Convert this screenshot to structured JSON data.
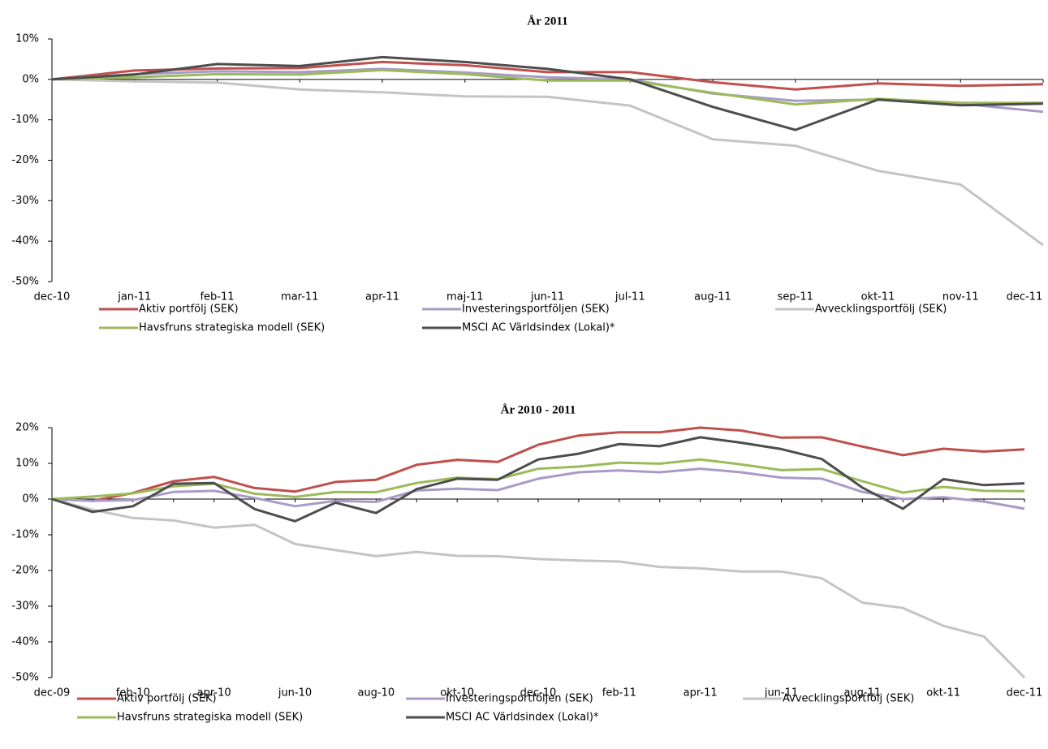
{
  "chart_data": [
    {
      "type": "line",
      "title": "År 2011",
      "categories": [
        "dec-10",
        "jan-11",
        "feb-11",
        "mar-11",
        "apr-11",
        "maj-11",
        "jun-11",
        "jul-11",
        "aug-11",
        "sep-11",
        "okt-11",
        "nov-11",
        "dec-11"
      ],
      "ylim": [
        -50,
        10
      ],
      "yticks": [
        {
          "value": -50,
          "label": "-50%"
        },
        {
          "value": -40,
          "label": "-40%"
        },
        {
          "value": -30,
          "label": "-30%"
        },
        {
          "value": -20,
          "label": "-20%"
        },
        {
          "value": -10,
          "label": "-10%"
        },
        {
          "value": 0,
          "label": "0%"
        },
        {
          "value": 10,
          "label": "10%"
        }
      ],
      "series": [
        {
          "name": "Aktiv portfölj (SEK)",
          "color": "#c0504d",
          "values": [
            0,
            2.2,
            2.7,
            2.8,
            4.3,
            3.5,
            1.8,
            1.8,
            -0.7,
            -2.5,
            -1,
            -1.6,
            -1.2
          ]
        },
        {
          "name": "Investeringsportföljen (SEK)",
          "color": "#a99bc7",
          "values": [
            0,
            1.3,
            2,
            1.8,
            2.6,
            1.7,
            0.5,
            0,
            -3.5,
            -5.3,
            -5,
            -6,
            -8
          ]
        },
        {
          "name": "Avvecklingsportfölj (SEK)",
          "color": "#c4c4c4",
          "values": [
            0,
            -0.5,
            -0.8,
            -2.5,
            -3.2,
            -4.2,
            -4.3,
            -6.5,
            -14.8,
            -16.4,
            -22.6,
            -26,
            -41
          ]
        },
        {
          "name": "Havsfruns strategiska modell (SEK)",
          "color": "#9bbb59",
          "values": [
            0,
            0.5,
            1.3,
            1.2,
            2.3,
            1.3,
            -0.3,
            -0.3,
            -3.3,
            -6.2,
            -4.8,
            -5.8,
            -5.8
          ]
        },
        {
          "name": "MSCI AC Världsindex (Lokal)*",
          "color": "#4d4d4d",
          "values": [
            0,
            1.2,
            3.8,
            3.3,
            5.5,
            4.3,
            2.6,
            0,
            -6.8,
            -12.5,
            -5,
            -6.4,
            -6
          ]
        }
      ]
    },
    {
      "type": "line",
      "title": "År 2010 - 2011",
      "categories": [
        "dec-09",
        null,
        "feb-10",
        null,
        "apr-10",
        null,
        "jun-10",
        null,
        "aug-10",
        null,
        "okt-10",
        null,
        "dec-10",
        null,
        "feb-11",
        null,
        "apr-11",
        null,
        "jun-11",
        null,
        "aug-11",
        null,
        "okt-11",
        null,
        "dec-11"
      ],
      "ylim": [
        -50,
        20
      ],
      "yticks": [
        {
          "value": -50,
          "label": "-50%"
        },
        {
          "value": -40,
          "label": "-40%"
        },
        {
          "value": -30,
          "label": "-30%"
        },
        {
          "value": -20,
          "label": "-20%"
        },
        {
          "value": -10,
          "label": "-10%"
        },
        {
          "value": 0,
          "label": "0%"
        },
        {
          "value": 10,
          "label": "10%"
        },
        {
          "value": 20,
          "label": "20%"
        }
      ],
      "series": [
        {
          "name": "Aktiv portfölj (SEK)",
          "color": "#c0504d",
          "values": [
            0,
            -0.5,
            1.7,
            5,
            6.2,
            3.1,
            2.1,
            4.8,
            5.4,
            9.6,
            11,
            10.4,
            15.2,
            17.8,
            18.7,
            18.7,
            20,
            19.2,
            17.2,
            17.3,
            14.7,
            12.3,
            14.1,
            13.3,
            13.9
          ]
        },
        {
          "name": "Investeringsportföljen (SEK)",
          "color": "#a99bc7",
          "values": [
            0,
            -0.5,
            -0.3,
            2,
            2.3,
            0.3,
            -2,
            -0.5,
            -0.8,
            2.4,
            2.9,
            2.5,
            5.7,
            7.5,
            8,
            7.5,
            8.5,
            7.5,
            6,
            5.7,
            2,
            0,
            0.5,
            -0.7,
            -2.7
          ]
        },
        {
          "name": "Avvecklingsportfölj (SEK)",
          "color": "#c4c4c4",
          "values": [
            0,
            -3,
            -5.3,
            -6,
            -8,
            -7.2,
            -12.6,
            -14.3,
            -16,
            -14.8,
            -15.9,
            -16,
            -16.8,
            -17.2,
            -17.5,
            -19,
            -19.4,
            -20.3,
            -20.3,
            -22.2,
            -29,
            -30.5,
            -35.5,
            -38.5,
            -50
          ]
        },
        {
          "name": "Havsfruns strategiska modell (SEK)",
          "color": "#9bbb59",
          "values": [
            0,
            0.7,
            1.6,
            3.6,
            4.3,
            1.5,
            0.6,
            2,
            1.9,
            4.5,
            6,
            5.6,
            8.5,
            9.1,
            10.2,
            9.9,
            11.1,
            9.7,
            8.1,
            8.4,
            5,
            1.8,
            3.4,
            2.3,
            2.2
          ]
        },
        {
          "name": "MSCI AC Världsindex (Lokal)*",
          "color": "#4d4d4d",
          "values": [
            0,
            -3.6,
            -2,
            4.3,
            4.5,
            -2.8,
            -6.2,
            -1,
            -3.9,
            2.8,
            5.7,
            5.4,
            11.1,
            12.7,
            15.4,
            14.8,
            17.3,
            15.8,
            14,
            11.2,
            3.2,
            -2.7,
            5.6,
            3.9,
            4.4
          ]
        }
      ]
    }
  ]
}
